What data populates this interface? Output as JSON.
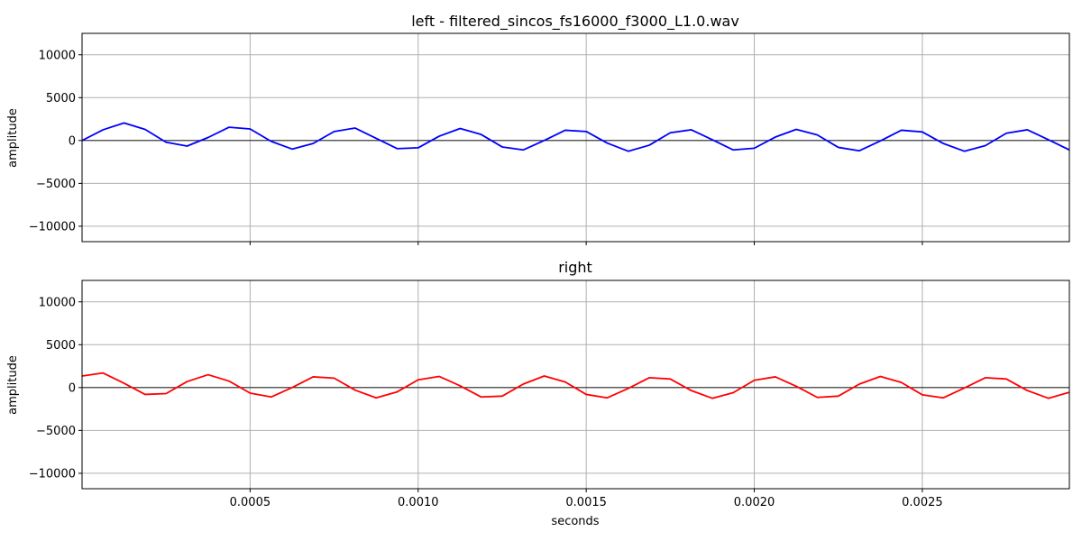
{
  "chart_data": [
    {
      "type": "line",
      "title": "left - filtered_sincos_fs16000_f3000_L1.0.wav",
      "xlabel": "",
      "ylabel": "amplitude",
      "xlim": [
        0,
        0.0029375
      ],
      "ylim": [
        -11800,
        12500
      ],
      "xticks": [],
      "yticks": [
        10000,
        5000,
        0,
        -5000,
        -10000
      ],
      "ytick_labels": [
        "10000",
        "5000",
        "0",
        "−5000",
        "−10000"
      ],
      "grid": true,
      "zero_line": true,
      "series": [
        {
          "color": "#0000ff",
          "x": [
            0,
            6.25e-05,
            0.000125,
            0.0001875,
            0.00025,
            0.0003125,
            0.000375,
            0.0004375,
            0.0005,
            0.0005625,
            0.000625,
            0.0006875,
            0.00075,
            0.0008125,
            0.000875,
            0.0009375,
            0.001,
            0.0010625,
            0.001125,
            0.0011875,
            0.00125,
            0.0013125,
            0.001375,
            0.0014375,
            0.0015,
            0.0015625,
            0.001625,
            0.0016875,
            0.00175,
            0.0018125,
            0.001875,
            0.0019375,
            0.002,
            0.0020625,
            0.002125,
            0.0021875,
            0.00225,
            0.0023125,
            0.002375,
            0.0024375,
            0.0025,
            0.0025625,
            0.002625,
            0.0026875,
            0.00275,
            0.0028125,
            0.002875,
            0.0029375
          ],
          "y": [
            0,
            1250,
            2050,
            1300,
            -200,
            -650,
            350,
            1550,
            1350,
            -100,
            -1000,
            -350,
            1050,
            1450,
            250,
            -950,
            -850,
            500,
            1400,
            700,
            -750,
            -1100,
            0,
            1200,
            1050,
            -300,
            -1250,
            -550,
            900,
            1250,
            100,
            -1100,
            -900,
            400,
            1300,
            650,
            -800,
            -1200,
            -50,
            1200,
            1000,
            -350,
            -1250,
            -600,
            850,
            1250,
            100,
            -1100
          ]
        }
      ]
    },
    {
      "type": "line",
      "title": "right",
      "xlabel": "seconds",
      "ylabel": "amplitude",
      "xlim": [
        0,
        0.0029375
      ],
      "ylim": [
        -11800,
        12500
      ],
      "xticks": [
        0.0005,
        0.001,
        0.0015,
        0.002,
        0.0025
      ],
      "xtick_labels": [
        "0.0005",
        "0.0010",
        "0.0015",
        "0.0020",
        "0.0025"
      ],
      "yticks": [
        10000,
        5000,
        0,
        -5000,
        -10000
      ],
      "ytick_labels": [
        "10000",
        "5000",
        "0",
        "−5000",
        "−10000"
      ],
      "grid": true,
      "zero_line": true,
      "series": [
        {
          "color": "#ff0000",
          "x": [
            0,
            6.25e-05,
            0.000125,
            0.0001875,
            0.00025,
            0.0003125,
            0.000375,
            0.0004375,
            0.0005,
            0.0005625,
            0.000625,
            0.0006875,
            0.00075,
            0.0008125,
            0.000875,
            0.0009375,
            0.001,
            0.0010625,
            0.001125,
            0.0011875,
            0.00125,
            0.0013125,
            0.001375,
            0.0014375,
            0.0015,
            0.0015625,
            0.001625,
            0.0016875,
            0.00175,
            0.0018125,
            0.001875,
            0.0019375,
            0.002,
            0.0020625,
            0.002125,
            0.0021875,
            0.00225,
            0.0023125,
            0.002375,
            0.0024375,
            0.0025,
            0.0025625,
            0.002625,
            0.0026875,
            0.00275,
            0.0028125,
            0.002875,
            0.0029375
          ],
          "y": [
            1350,
            1700,
            500,
            -800,
            -700,
            700,
            1500,
            750,
            -650,
            -1100,
            0,
            1250,
            1100,
            -300,
            -1200,
            -500,
            900,
            1300,
            200,
            -1100,
            -1000,
            400,
            1350,
            650,
            -800,
            -1200,
            -100,
            1150,
            1000,
            -350,
            -1250,
            -600,
            850,
            1250,
            150,
            -1150,
            -1000,
            400,
            1300,
            600,
            -850,
            -1200,
            -50,
            1150,
            1000,
            -350,
            -1250,
            -550
          ]
        }
      ]
    }
  ]
}
